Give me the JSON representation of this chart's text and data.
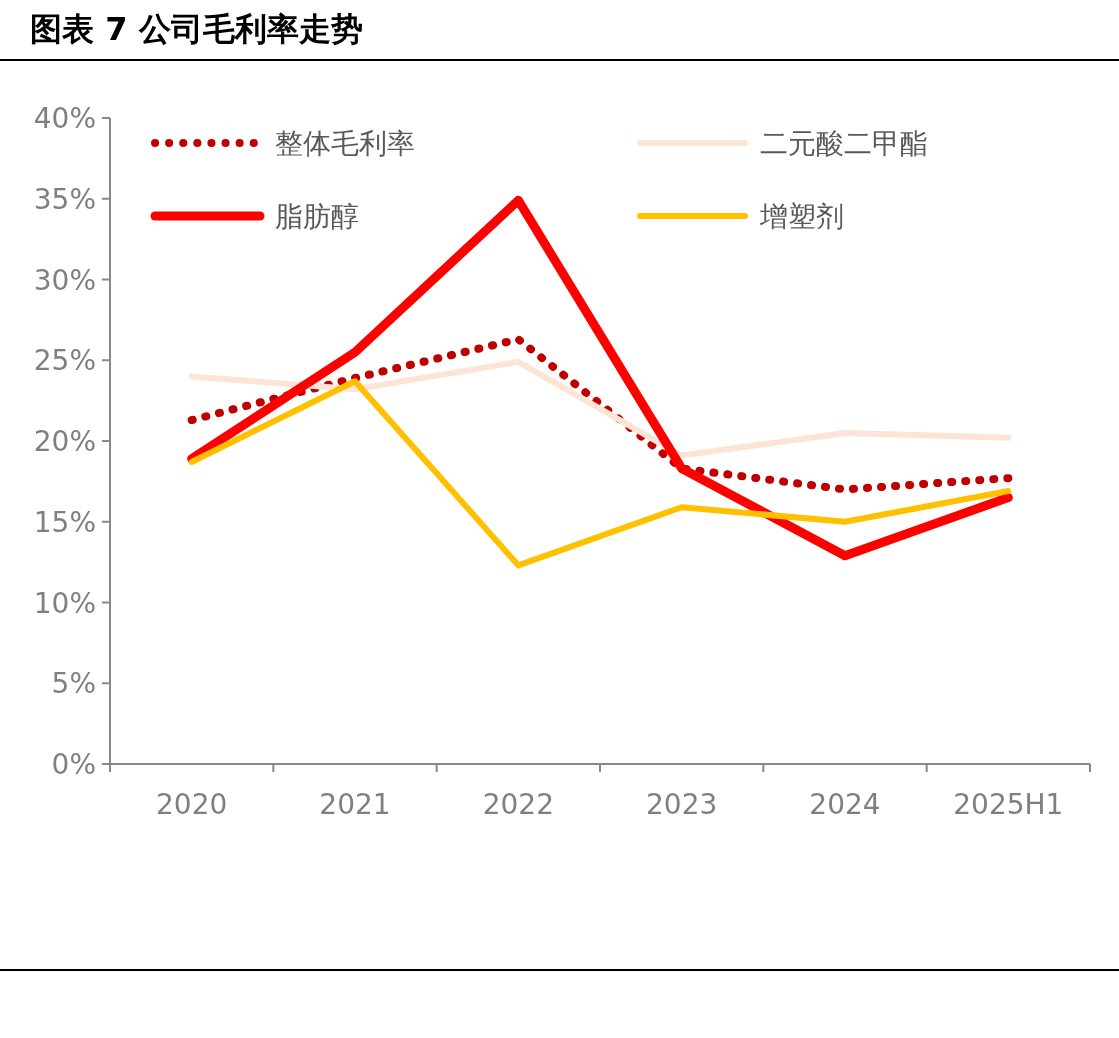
{
  "chart_data": {
    "type": "line",
    "title": "图表 7 公司毛利率走势",
    "categories": [
      "2020",
      "2021",
      "2022",
      "2023",
      "2024",
      "2025H1"
    ],
    "series": [
      {
        "name": "整体毛利率",
        "color": "#c00000",
        "line_style": "dotted",
        "values": [
          21.3,
          23.9,
          26.3,
          18.3,
          17.0,
          17.7
        ]
      },
      {
        "name": "二元酸二甲酯",
        "color": "#fbe5d6",
        "line_style": "solid",
        "values": [
          24.0,
          23.2,
          24.9,
          19.1,
          20.5,
          20.2
        ]
      },
      {
        "name": "脂肪醇",
        "color": "#ff0000",
        "line_style": "solid",
        "values": [
          18.9,
          25.5,
          34.9,
          18.3,
          12.9,
          16.5
        ]
      },
      {
        "name": "增塑剂",
        "color": "#ffc000",
        "line_style": "solid",
        "values": [
          18.7,
          23.7,
          12.3,
          15.9,
          15.0,
          16.9
        ]
      }
    ],
    "ylim": [
      0,
      40
    ],
    "yticks": [
      {
        "value": 0,
        "label": "0%"
      },
      {
        "value": 5,
        "label": "5%"
      },
      {
        "value": 10,
        "label": "10%"
      },
      {
        "value": 15,
        "label": "15%"
      },
      {
        "value": 20,
        "label": "20%"
      },
      {
        "value": 25,
        "label": "25%"
      },
      {
        "value": 30,
        "label": "30%"
      },
      {
        "value": 35,
        "label": "35%"
      },
      {
        "value": 40,
        "label": "40%"
      }
    ],
    "grid": false,
    "legend": "top",
    "marker": "none"
  }
}
